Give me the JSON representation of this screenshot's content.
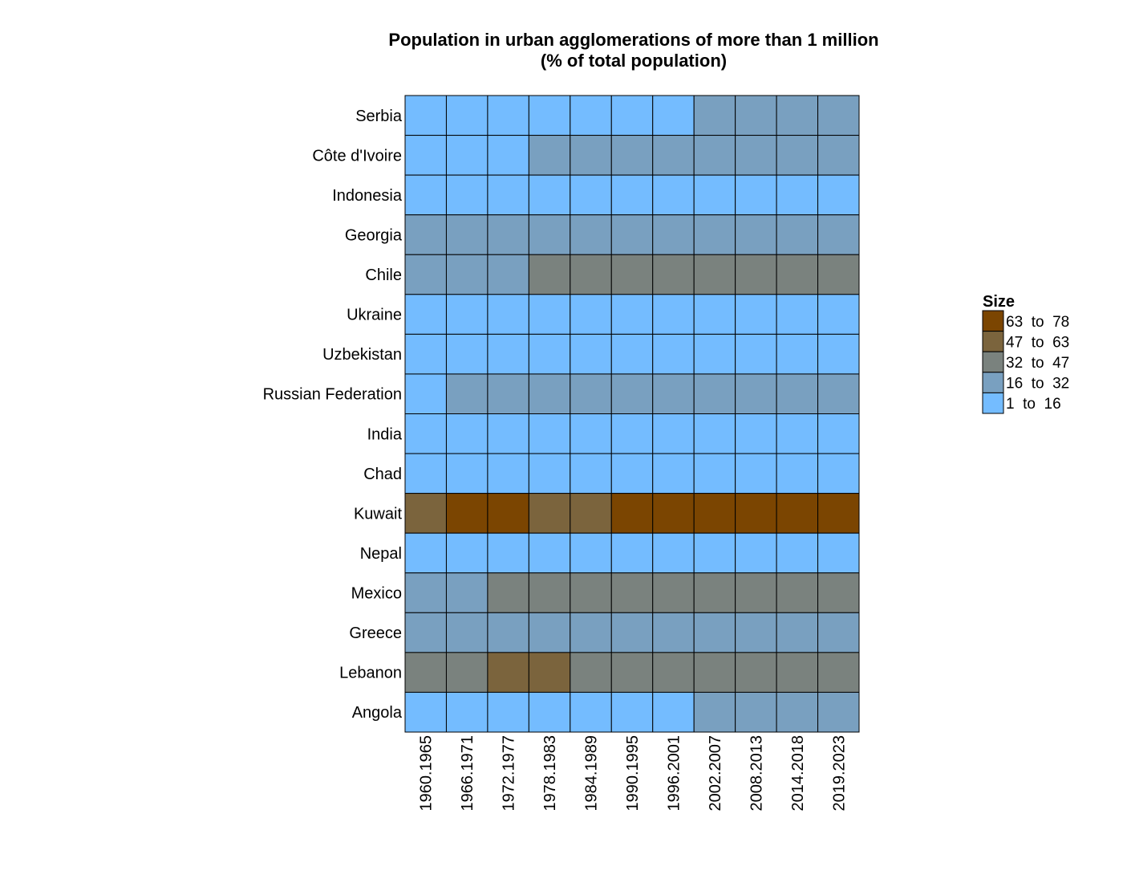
{
  "chart_data": {
    "type": "heatmap",
    "title": "Population in urban agglomerations of more than 1 million",
    "subtitle": "(% of total population)",
    "rows": [
      "Serbia",
      "Côte d'Ivoire",
      "Indonesia",
      "Georgia",
      "Chile",
      "Ukraine",
      "Uzbekistan",
      "Russian Federation",
      "India",
      "Chad",
      "Kuwait",
      "Nepal",
      "Mexico",
      "Greece",
      "Lebanon",
      "Angola"
    ],
    "columns": [
      "1960.1965",
      "1966.1971",
      "1972.1977",
      "1978.1983",
      "1984.1989",
      "1990.1995",
      "1996.2001",
      "2002.2007",
      "2008.2013",
      "2014.2018",
      "2019.2023"
    ],
    "bin_index_matrix": [
      [
        0,
        0,
        0,
        0,
        0,
        0,
        0,
        1,
        1,
        1,
        1
      ],
      [
        0,
        0,
        0,
        1,
        1,
        1,
        1,
        1,
        1,
        1,
        1
      ],
      [
        0,
        0,
        0,
        0,
        0,
        0,
        0,
        0,
        0,
        0,
        0
      ],
      [
        1,
        1,
        1,
        1,
        1,
        1,
        1,
        1,
        1,
        1,
        1
      ],
      [
        1,
        1,
        1,
        2,
        2,
        2,
        2,
        2,
        2,
        2,
        2
      ],
      [
        0,
        0,
        0,
        0,
        0,
        0,
        0,
        0,
        0,
        0,
        0
      ],
      [
        0,
        0,
        0,
        0,
        0,
        0,
        0,
        0,
        0,
        0,
        0
      ],
      [
        0,
        1,
        1,
        1,
        1,
        1,
        1,
        1,
        1,
        1,
        1
      ],
      [
        0,
        0,
        0,
        0,
        0,
        0,
        0,
        0,
        0,
        0,
        0
      ],
      [
        0,
        0,
        0,
        0,
        0,
        0,
        0,
        0,
        0,
        0,
        0
      ],
      [
        3,
        4,
        4,
        3,
        3,
        4,
        4,
        4,
        4,
        4,
        4
      ],
      [
        0,
        0,
        0,
        0,
        0,
        0,
        0,
        0,
        0,
        0,
        0
      ],
      [
        1,
        1,
        2,
        2,
        2,
        2,
        2,
        2,
        2,
        2,
        2
      ],
      [
        1,
        1,
        1,
        1,
        1,
        1,
        1,
        1,
        1,
        1,
        1
      ],
      [
        2,
        2,
        3,
        3,
        2,
        2,
        2,
        2,
        2,
        2,
        2
      ],
      [
        0,
        0,
        0,
        0,
        0,
        0,
        0,
        1,
        1,
        1,
        1
      ]
    ],
    "legend": {
      "title": "Size",
      "placement": "right",
      "bins": [
        {
          "label": "1  to  16",
          "color": "#74bcff"
        },
        {
          "label": "16  to  32",
          "color": "#79a0c0"
        },
        {
          "label": "32  to  47",
          "color": "#7a827e"
        },
        {
          "label": "47  to  63",
          "color": "#7b643d"
        },
        {
          "label": "63  to  78",
          "color": "#7b4501"
        }
      ]
    },
    "grid": false
  }
}
